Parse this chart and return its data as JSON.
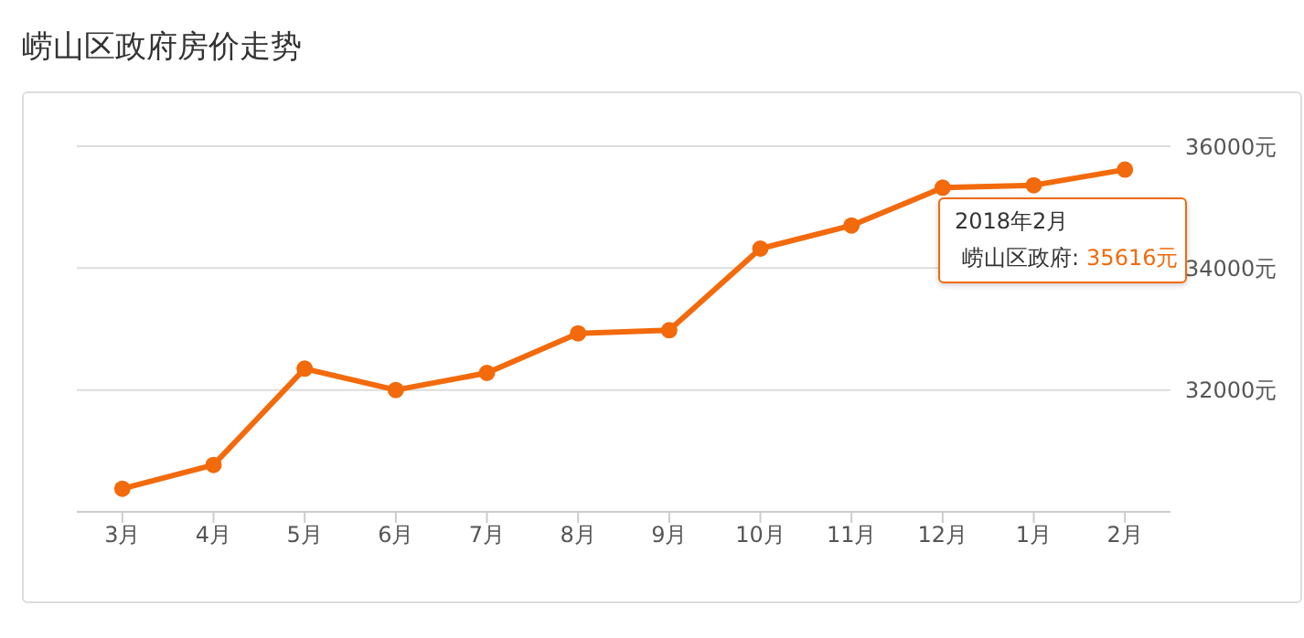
{
  "chart_data": {
    "type": "line",
    "title": "崂山区政府房价走势",
    "categories": [
      "3月",
      "4月",
      "5月",
      "6月",
      "7月",
      "8月",
      "9月",
      "10月",
      "11月",
      "12月",
      "1月",
      "2月"
    ],
    "series": [
      {
        "name": "崂山区政府:",
        "color": "#f26a0c",
        "values": [
          30380,
          30770,
          32350,
          32000,
          32280,
          32930,
          32980,
          34320,
          34700,
          35320,
          35360,
          35616
        ],
        "value_labels": [
          null,
          null,
          null,
          null,
          null,
          null,
          null,
          null,
          null,
          null,
          null,
          "35616元"
        ]
      }
    ],
    "annotations": [
      "2018年2月"
    ],
    "ylim": [
      30000,
      36000
    ],
    "yticks": [
      {
        "value": 32000,
        "label": "32000元"
      },
      {
        "value": 34000,
        "label": "34000元"
      },
      {
        "value": 36000,
        "label": "36000元"
      }
    ],
    "grid": "y",
    "legend": "top right",
    "marker": "circle",
    "line_style": "solid"
  }
}
